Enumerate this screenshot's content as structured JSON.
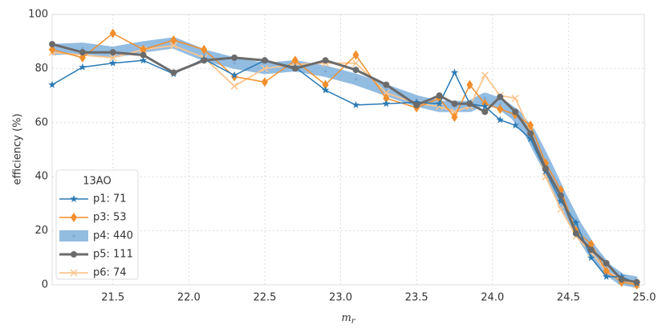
{
  "chart_data": {
    "type": "line",
    "ylabel": "efficiency (%)",
    "xlabel": {
      "base": "m",
      "sub": "r"
    },
    "xlim": [
      21.1,
      25.0
    ],
    "ylim": [
      0,
      100
    ],
    "xticks": [
      21.5,
      {
        "value": 22,
        "label": "22.0"
      },
      22.5,
      {
        "value": 23,
        "label": "23.0"
      },
      23.5,
      {
        "value": 24,
        "label": "24.0"
      },
      24.5,
      {
        "value": 25,
        "label": "25.0"
      }
    ],
    "yticks": [
      0,
      20,
      40,
      60,
      80,
      100
    ],
    "grid": true,
    "legend": {
      "title": "13AO",
      "corner": "lower left"
    },
    "x": [
      21.1,
      21.3,
      21.5,
      21.7,
      21.9,
      22.1,
      22.3,
      22.5,
      22.7,
      22.9,
      23.1,
      23.3,
      23.5,
      23.65,
      23.75,
      23.85,
      23.95,
      24.05,
      24.15,
      24.25,
      24.35,
      24.45,
      24.55,
      24.65,
      24.75,
      24.85,
      24.95
    ],
    "series": [
      {
        "name": "p1: 71",
        "color": "#2a7ab5",
        "marker": "star",
        "values": [
          74,
          80.5,
          82,
          83,
          78,
          83.5,
          77.5,
          83,
          80.5,
          72,
          66.5,
          67,
          67.5,
          67,
          78.5,
          67,
          66,
          61,
          59,
          54,
          42,
          31,
          23,
          10,
          3,
          3,
          0.5
        ]
      },
      {
        "name": "p3: 53",
        "color": "#f28e2b",
        "marker": "diamond",
        "values": [
          87,
          84,
          93,
          87,
          90.5,
          87,
          77,
          75,
          83,
          74,
          85,
          69,
          65.5,
          69,
          62,
          74,
          67,
          65,
          63,
          59,
          45,
          35,
          20,
          15,
          5,
          1,
          0
        ]
      },
      {
        "name": "p4: 440",
        "color": "#6fa6d8",
        "marker": "dot",
        "values": [
          87,
          87.5,
          86,
          88,
          89.5,
          85,
          82,
          80,
          81,
          79,
          76,
          72,
          68,
          66,
          66,
          66,
          69,
          67,
          63,
          56,
          45,
          33,
          22,
          13,
          6,
          2,
          1
        ]
      },
      {
        "name": "p5: 111",
        "color": "#6b6b6b",
        "marker": "circle",
        "values": [
          89,
          86,
          86,
          85,
          78.5,
          83,
          84,
          83,
          80,
          83,
          79.5,
          74,
          66.5,
          70,
          67,
          67,
          64,
          69.5,
          64,
          56,
          43,
          33,
          19,
          13,
          8,
          2,
          1
        ]
      },
      {
        "name": "p6: 74",
        "color": "#fcc58e",
        "marker": "x",
        "values": [
          86,
          85,
          84,
          87,
          88.5,
          84,
          73.5,
          80,
          81.5,
          82,
          82,
          71,
          67,
          66,
          64,
          66,
          77.5,
          70,
          69,
          57,
          40,
          28,
          18,
          12,
          5,
          2,
          0
        ]
      }
    ]
  }
}
